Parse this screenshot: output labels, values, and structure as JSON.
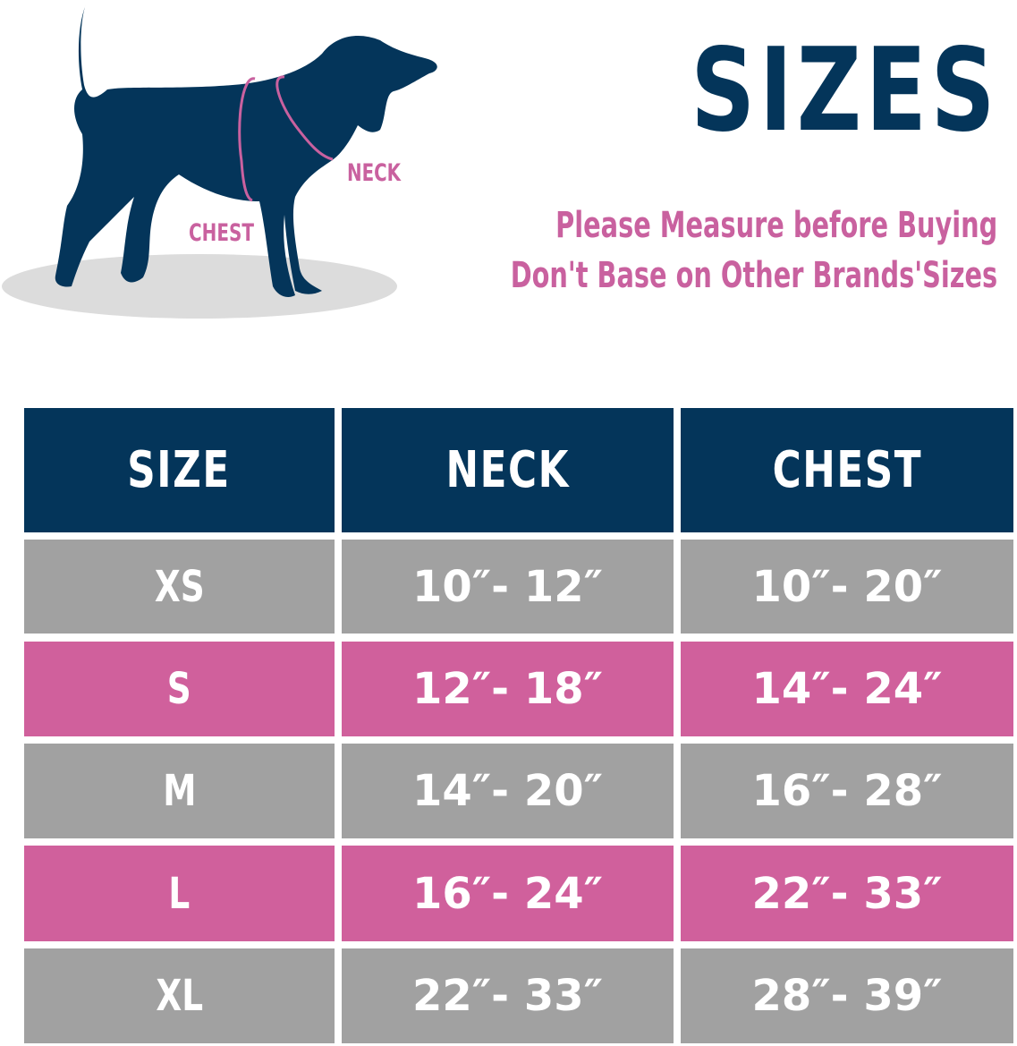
{
  "illustration": {
    "labels": {
      "neck": "NECK",
      "chest": "CHEST"
    },
    "colors": {
      "dog": "#04355a",
      "measure": "#c9619f",
      "shadow": "#dcdcdc"
    }
  },
  "header": {
    "title": "SIZES",
    "notes": [
      "Please Measure before Buying",
      "Don't Base on Other Brands'Sizes"
    ]
  },
  "table": {
    "columns": [
      "SIZE",
      "NECK",
      "CHEST"
    ],
    "rows": [
      {
        "size": "XS",
        "neck": "10″- 12″",
        "chest": "10″- 20″",
        "color": "gray"
      },
      {
        "size": "S",
        "neck": "12″- 18″",
        "chest": "14″- 24″",
        "color": "pink"
      },
      {
        "size": "M",
        "neck": "14″- 20″",
        "chest": "16″- 28″",
        "color": "gray"
      },
      {
        "size": "L",
        "neck": "16″- 24″",
        "chest": "22″- 33″",
        "color": "pink"
      },
      {
        "size": "XL",
        "neck": "22″- 33″",
        "chest": "28″- 39″",
        "color": "gray"
      }
    ],
    "colors": {
      "header": "#04355a",
      "gray": "#a1a1a1",
      "pink": "#d0609c"
    }
  }
}
